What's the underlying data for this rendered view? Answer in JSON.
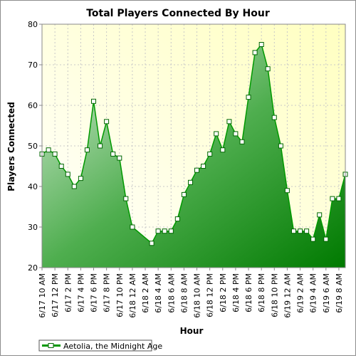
{
  "chart_data": {
    "type": "area",
    "title": "Total Players Connected By Hour",
    "xlabel": "Hour",
    "ylabel": "Players Connected",
    "ylim": [
      20,
      80
    ],
    "yticks": [
      20,
      30,
      40,
      50,
      60,
      70,
      80
    ],
    "xtick_labels": [
      "6/17 10 AM",
      "6/17 12 PM",
      "6/17 2 PM",
      "6/17 4 PM",
      "6/17 6 PM",
      "6/17 8 PM",
      "6/17 10 PM",
      "6/18 12 AM",
      "6/18 2 AM",
      "6/18 4 AM",
      "6/18 6 AM",
      "6/18 8 AM",
      "6/18 10 AM",
      "6/18 12 PM",
      "6/18 2 PM",
      "6/18 4 PM",
      "6/18 6 PM",
      "6/18 8 PM",
      "6/18 10 PM",
      "6/19 12 AM",
      "6/19 2 AM",
      "6/19 4 AM",
      "6/19 6 AM",
      "6/19 8 AM"
    ],
    "grid": true,
    "legend_position": "bottom-left",
    "series": [
      {
        "name": "Aetolia, the Midnight Age",
        "color": "#009900",
        "points": [
          {
            "x": "2006-06-17 10:00",
            "y": 48
          },
          {
            "x": "2006-06-17 11:00",
            "y": 49
          },
          {
            "x": "2006-06-17 12:00",
            "y": 48
          },
          {
            "x": "2006-06-17 13:00",
            "y": 45
          },
          {
            "x": "2006-06-17 14:00",
            "y": 43
          },
          {
            "x": "2006-06-17 15:00",
            "y": 40
          },
          {
            "x": "2006-06-17 16:00",
            "y": 42
          },
          {
            "x": "2006-06-17 17:00",
            "y": 49
          },
          {
            "x": "2006-06-17 18:00",
            "y": 61
          },
          {
            "x": "2006-06-17 19:00",
            "y": 50
          },
          {
            "x": "2006-06-17 20:00",
            "y": 56
          },
          {
            "x": "2006-06-17 21:00",
            "y": 48
          },
          {
            "x": "2006-06-17 22:00",
            "y": 47
          },
          {
            "x": "2006-06-17 23:00",
            "y": 37
          },
          {
            "x": "2006-06-18 00:00",
            "y": 30
          },
          {
            "x": "2006-06-18 03:00",
            "y": 26
          },
          {
            "x": "2006-06-18 04:00",
            "y": 29
          },
          {
            "x": "2006-06-18 05:00",
            "y": 29
          },
          {
            "x": "2006-06-18 06:00",
            "y": 29
          },
          {
            "x": "2006-06-18 07:00",
            "y": 32
          },
          {
            "x": "2006-06-18 08:00",
            "y": 38
          },
          {
            "x": "2006-06-18 09:00",
            "y": 41
          },
          {
            "x": "2006-06-18 10:00",
            "y": 44
          },
          {
            "x": "2006-06-18 11:00",
            "y": 45
          },
          {
            "x": "2006-06-18 12:00",
            "y": 48
          },
          {
            "x": "2006-06-18 13:00",
            "y": 53
          },
          {
            "x": "2006-06-18 14:00",
            "y": 49
          },
          {
            "x": "2006-06-18 15:00",
            "y": 56
          },
          {
            "x": "2006-06-18 16:00",
            "y": 53
          },
          {
            "x": "2006-06-18 17:00",
            "y": 51
          },
          {
            "x": "2006-06-18 18:00",
            "y": 62
          },
          {
            "x": "2006-06-18 19:00",
            "y": 73
          },
          {
            "x": "2006-06-18 20:00",
            "y": 75
          },
          {
            "x": "2006-06-18 21:00",
            "y": 69
          },
          {
            "x": "2006-06-18 22:00",
            "y": 57
          },
          {
            "x": "2006-06-18 23:00",
            "y": 50
          },
          {
            "x": "2006-06-19 00:00",
            "y": 39
          },
          {
            "x": "2006-06-19 01:00",
            "y": 29
          },
          {
            "x": "2006-06-19 02:00",
            "y": 29
          },
          {
            "x": "2006-06-19 03:00",
            "y": 29
          },
          {
            "x": "2006-06-19 04:00",
            "y": 27
          },
          {
            "x": "2006-06-19 05:00",
            "y": 33
          },
          {
            "x": "2006-06-19 06:00",
            "y": 27
          },
          {
            "x": "2006-06-19 07:00",
            "y": 37
          },
          {
            "x": "2006-06-19 08:00",
            "y": 37
          },
          {
            "x": "2006-06-19 09:00",
            "y": 43
          }
        ]
      }
    ]
  }
}
